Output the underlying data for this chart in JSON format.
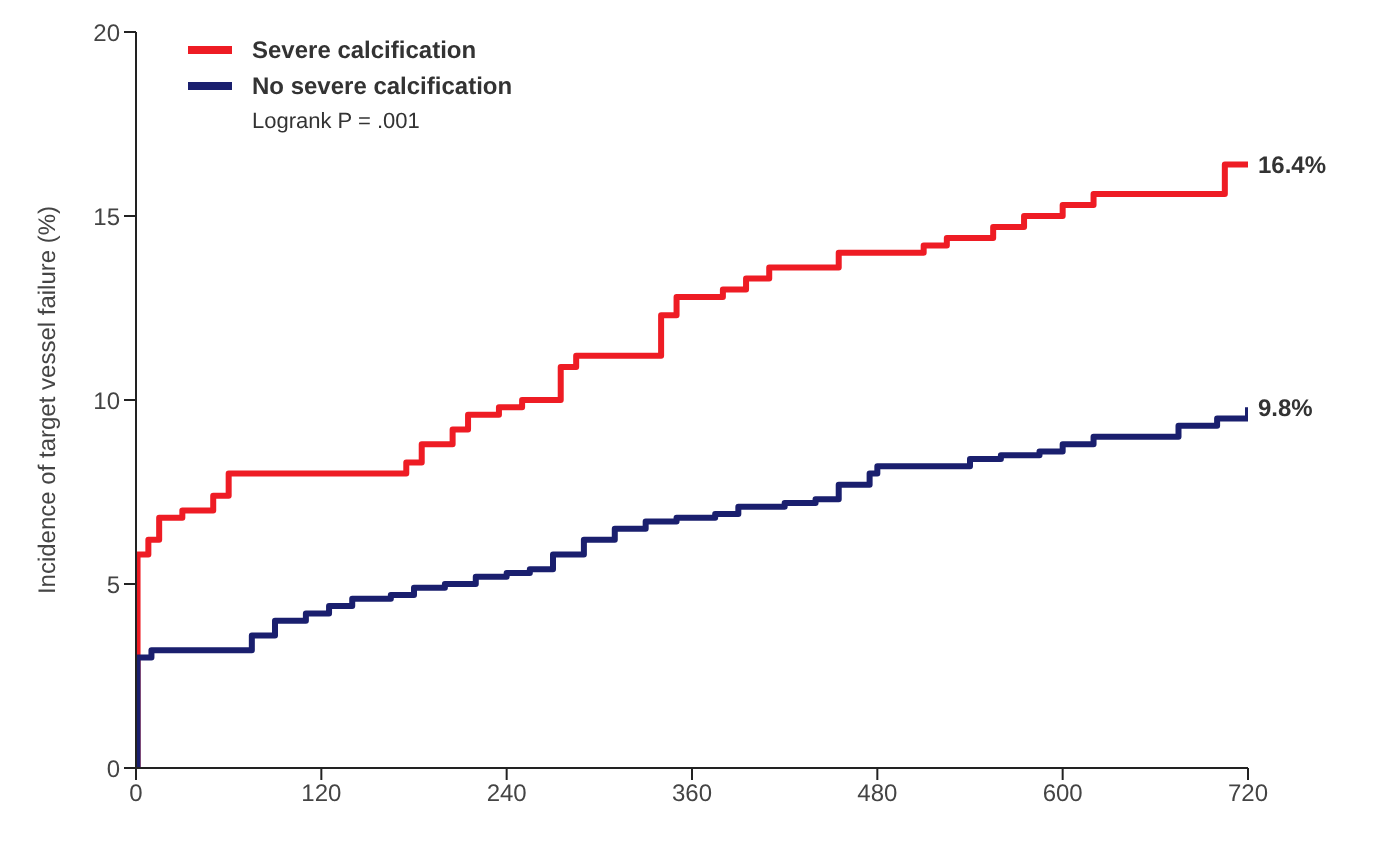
{
  "chart_data": {
    "type": "step",
    "ylabel": "Incidence of target vessel failure (%)",
    "xlim": [
      0,
      720
    ],
    "xticks": [
      0,
      120,
      240,
      360,
      480,
      600,
      720
    ],
    "ylim": [
      0,
      20
    ],
    "yticks": [
      0,
      5,
      10,
      15,
      20
    ],
    "grid": false,
    "legend": "top left",
    "marker": "none",
    "series": [
      {
        "name": "Severe calcification",
        "color": "#ee1c24",
        "x": [
          0,
          1,
          8,
          15,
          30,
          50,
          60,
          160,
          175,
          185,
          205,
          215,
          235,
          250,
          275,
          285,
          330,
          340,
          350,
          380,
          395,
          410,
          445,
          455,
          510,
          525,
          555,
          575,
          600,
          620,
          705,
          720
        ],
        "values": [
          0,
          5.8,
          6.2,
          6.8,
          7.0,
          7.4,
          8.0,
          8.0,
          8.3,
          8.8,
          9.2,
          9.6,
          9.8,
          10.0,
          10.9,
          11.2,
          11.2,
          12.3,
          12.8,
          13.0,
          13.3,
          13.6,
          13.6,
          14.0,
          14.2,
          14.4,
          14.7,
          15.0,
          15.3,
          15.6,
          16.4,
          16.4
        ]
      },
      {
        "name": "No severe calcification",
        "color": "#1a1f6e",
        "x": [
          0,
          1,
          10,
          60,
          75,
          90,
          110,
          125,
          140,
          165,
          180,
          200,
          220,
          240,
          255,
          270,
          290,
          310,
          330,
          350,
          375,
          390,
          420,
          440,
          455,
          475,
          480,
          520,
          540,
          560,
          585,
          600,
          620,
          660,
          675,
          700,
          720
        ],
        "values": [
          0,
          3.0,
          3.2,
          3.2,
          3.6,
          4.0,
          4.2,
          4.4,
          4.6,
          4.7,
          4.9,
          5.0,
          5.2,
          5.3,
          5.4,
          5.8,
          6.2,
          6.5,
          6.7,
          6.8,
          6.9,
          7.1,
          7.2,
          7.3,
          7.7,
          8.0,
          8.2,
          8.2,
          8.4,
          8.5,
          8.6,
          8.8,
          9.0,
          9.0,
          9.3,
          9.5,
          9.8
        ]
      }
    ],
    "annotations": [
      "Logrank P = .001",
      {
        "text": "16.4%",
        "x": 720,
        "y": 16.4
      },
      {
        "text": "9.8%",
        "x": 720,
        "y": 9.8
      }
    ]
  }
}
